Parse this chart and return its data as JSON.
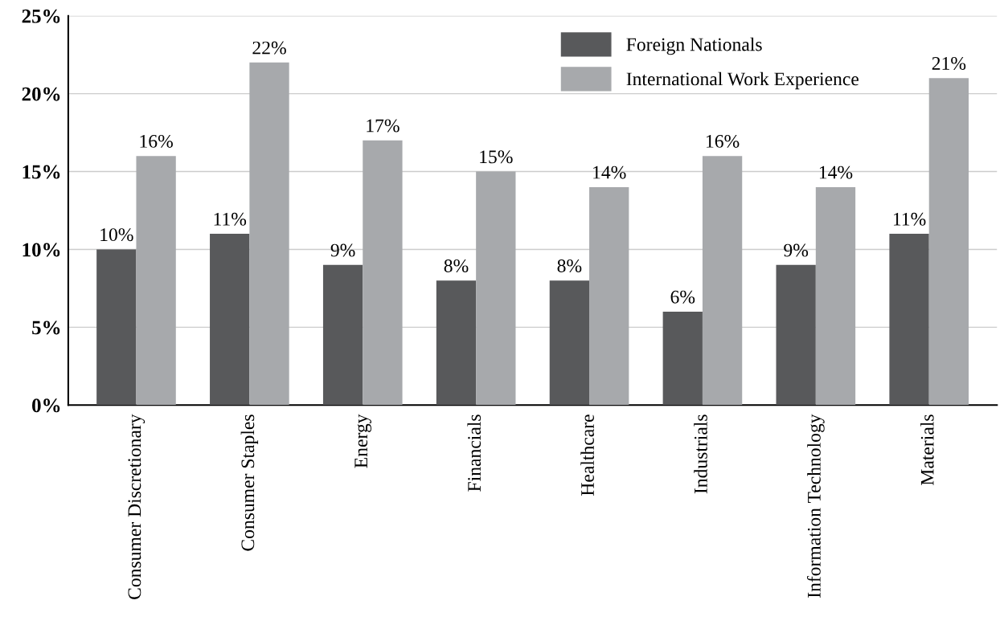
{
  "chart_data": {
    "type": "bar",
    "categories": [
      "Consumer Discretionary",
      "Consumer Staples",
      "Energy",
      "Financials",
      "Healthcare",
      "Industrials",
      "Information Technology",
      "Materials"
    ],
    "series": [
      {
        "name": "Foreign Nationals",
        "color": "#58595b",
        "values": [
          10,
          11,
          9,
          8,
          8,
          6,
          9,
          11
        ],
        "value_labels": [
          "10%",
          "11%",
          "9%",
          "8%",
          "8%",
          "6%",
          "9%",
          "11%"
        ]
      },
      {
        "name": "International Work Experience",
        "color": "#a7a9ac",
        "values": [
          16,
          22,
          17,
          15,
          14,
          16,
          14,
          21
        ],
        "value_labels": [
          "16%",
          "22%",
          "17%",
          "15%",
          "14%",
          "16%",
          "14%",
          "21%"
        ]
      }
    ],
    "ylim": [
      0,
      25
    ],
    "yticks": [
      {
        "value": 0,
        "label": "0%"
      },
      {
        "value": 5,
        "label": "5%"
      },
      {
        "value": 10,
        "label": "10%"
      },
      {
        "value": 15,
        "label": "15%"
      },
      {
        "value": 20,
        "label": "20%"
      },
      {
        "value": 25,
        "label": "25%"
      }
    ],
    "grid": "y",
    "legend": "top right"
  }
}
